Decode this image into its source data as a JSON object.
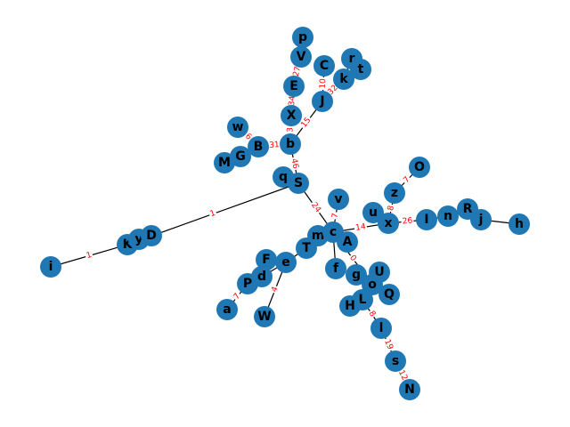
{
  "graph": {
    "colors": {
      "node": "#1f77b4",
      "edge": "#000000",
      "edge_label": "#ff0000",
      "node_label": "#000000"
    },
    "nodes": [
      "p",
      "V",
      "r",
      "C",
      "t",
      "k",
      "E",
      "J",
      "X",
      "w",
      "b",
      "B",
      "G",
      "M",
      "O",
      "q",
      "S",
      "z",
      "v",
      "u",
      "x",
      "R",
      "I",
      "n",
      "j",
      "h",
      "m",
      "c",
      "T",
      "A",
      "K",
      "y",
      "D",
      "F",
      "e",
      "i",
      "f",
      "g",
      "U",
      "d",
      "o",
      "Q",
      "P",
      "L",
      "H",
      "a",
      "W",
      "l",
      "s",
      "N"
    ],
    "edges": [
      {
        "source": "p",
        "target": "V",
        "label": ""
      },
      {
        "source": "V",
        "target": "E",
        "label": "27"
      },
      {
        "source": "E",
        "target": "X",
        "label": "34"
      },
      {
        "source": "X",
        "target": "b",
        "label": "3"
      },
      {
        "source": "C",
        "target": "J",
        "label": "10"
      },
      {
        "source": "k",
        "target": "J",
        "label": "32"
      },
      {
        "source": "r",
        "target": "k",
        "label": ""
      },
      {
        "source": "t",
        "target": "k",
        "label": ""
      },
      {
        "source": "J",
        "target": "b",
        "label": "15"
      },
      {
        "source": "w",
        "target": "B",
        "label": "6"
      },
      {
        "source": "B",
        "target": "b",
        "label": "31"
      },
      {
        "source": "G",
        "target": "B",
        "label": ""
      },
      {
        "source": "M",
        "target": "G",
        "label": ""
      },
      {
        "source": "b",
        "target": "S",
        "label": "46"
      },
      {
        "source": "q",
        "target": "S",
        "label": ""
      },
      {
        "source": "S",
        "target": "c",
        "label": "24"
      },
      {
        "source": "S",
        "target": "K",
        "label": "1"
      },
      {
        "source": "K",
        "target": "i",
        "label": "1"
      },
      {
        "source": "K",
        "target": "y",
        "label": ""
      },
      {
        "source": "y",
        "target": "D",
        "label": ""
      },
      {
        "source": "v",
        "target": "c",
        "label": "7"
      },
      {
        "source": "m",
        "target": "c",
        "label": ""
      },
      {
        "source": "T",
        "target": "m",
        "label": ""
      },
      {
        "source": "c",
        "target": "A",
        "label": ""
      },
      {
        "source": "c",
        "target": "x",
        "label": "14"
      },
      {
        "source": "u",
        "target": "x",
        "label": ""
      },
      {
        "source": "z",
        "target": "x",
        "label": "8"
      },
      {
        "source": "O",
        "target": "z",
        "label": "7"
      },
      {
        "source": "x",
        "target": "I",
        "label": "26"
      },
      {
        "source": "I",
        "target": "n",
        "label": ""
      },
      {
        "source": "n",
        "target": "R",
        "label": ""
      },
      {
        "source": "R",
        "target": "j",
        "label": ""
      },
      {
        "source": "j",
        "target": "h",
        "label": ""
      },
      {
        "source": "c",
        "target": "o",
        "label": "0"
      },
      {
        "source": "f",
        "target": "c",
        "label": ""
      },
      {
        "source": "g",
        "target": "o",
        "label": ""
      },
      {
        "source": "U",
        "target": "o",
        "label": ""
      },
      {
        "source": "o",
        "target": "Q",
        "label": ""
      },
      {
        "source": "o",
        "target": "L",
        "label": "6"
      },
      {
        "source": "L",
        "target": "H",
        "label": ""
      },
      {
        "source": "L",
        "target": "l",
        "label": "8"
      },
      {
        "source": "l",
        "target": "s",
        "label": "19"
      },
      {
        "source": "s",
        "target": "N",
        "label": "12"
      },
      {
        "source": "T",
        "target": "e",
        "label": ""
      },
      {
        "source": "F",
        "target": "e",
        "label": ""
      },
      {
        "source": "d",
        "target": "e",
        "label": ""
      },
      {
        "source": "e",
        "target": "W",
        "label": "4"
      },
      {
        "source": "P",
        "target": "d",
        "label": ""
      },
      {
        "source": "a",
        "target": "P",
        "label": "7"
      }
    ]
  }
}
